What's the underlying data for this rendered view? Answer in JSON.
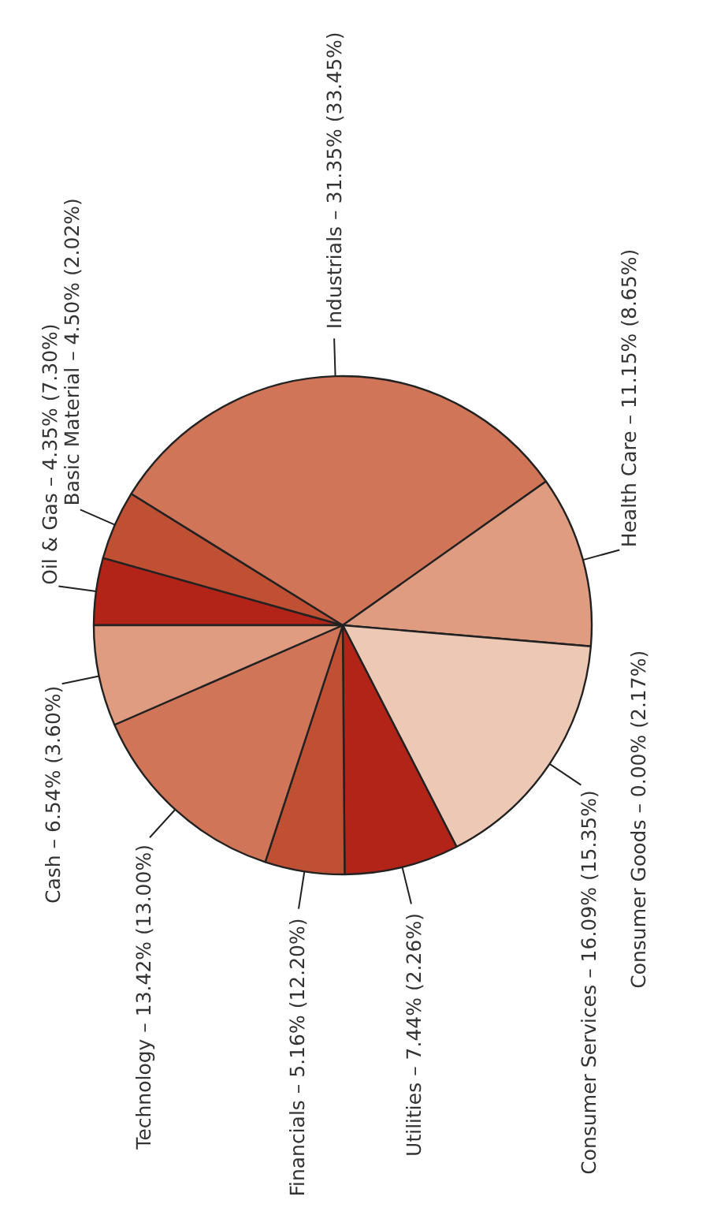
{
  "chart_data": {
    "type": "pie",
    "categories": [
      "Oil & Gas – 4.35% (7.30%)",
      "Basic Material – 4.50% (2.02%)",
      "Industrials – 31.35% (33.45%)",
      "Health Care – 11.15% (8.65%)",
      "Consumer Goods – 0.00% (2.17%)",
      "Consumer Services – 16.09% (15.35%)",
      "Utilities – 7.44% (2.26%)",
      "Financials – 5.16% (12.20%)",
      "Technology – 13.42% (13.00%)",
      "Cash – 6.54% (3.60%)"
    ],
    "values": [
      4.35,
      4.5,
      31.35,
      11.15,
      0,
      16.09,
      7.44,
      5.16,
      13.42,
      6.54
    ],
    "colors": [
      "#b22318",
      "#c05033",
      "#d07558",
      "#df9c80",
      "#ecc8b5",
      "#ecc8b5",
      "#b22318",
      "#c05033",
      "#d07558",
      "#df9c80"
    ]
  }
}
